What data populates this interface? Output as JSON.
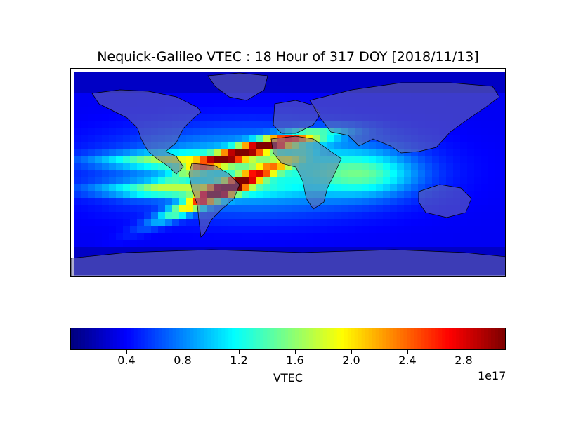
{
  "title": "Nequick-Galileo VTEC : 18 Hour of 317 DOY [2018/11/13]",
  "colorbar": {
    "label": "VTEC",
    "offset_text": "1e17",
    "colormap": "jet",
    "range": [
      0.0,
      3.1
    ],
    "ticks": [
      "0.4",
      "0.8",
      "1.2",
      "1.6",
      "2.0",
      "2.4",
      "2.8"
    ],
    "tick_values": [
      0.4,
      0.8,
      1.2,
      1.6,
      2.0,
      2.4,
      2.8
    ]
  },
  "map": {
    "projection": "cylindrical",
    "lon_range": [
      -180,
      180
    ],
    "lat_range": [
      -90,
      90
    ],
    "land_color": "#7777a8",
    "coastline_color": "#000000",
    "field_peak_bands": [
      {
        "name": "northern crest",
        "value_peak": 3.0
      },
      {
        "name": "southern crest",
        "value_peak": 2.9
      }
    ]
  }
}
